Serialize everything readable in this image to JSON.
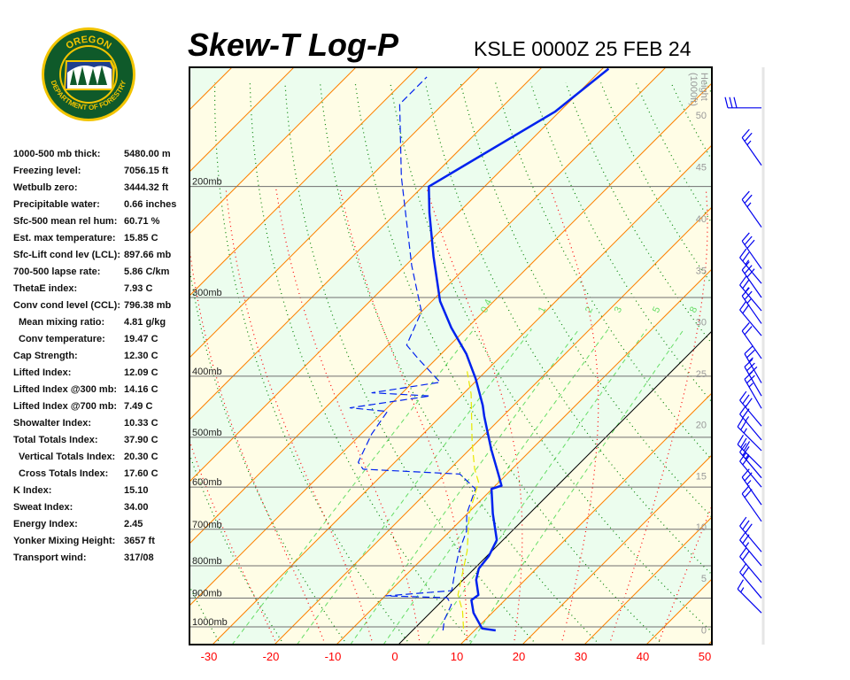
{
  "header": {
    "title": "Skew-T Log-P",
    "station": "KSLE 0000Z 25 FEB 24"
  },
  "logo": {
    "top_text": "OREGON",
    "bottom_text": "DEPARTMENT OF FORESTRY",
    "colors": {
      "ring": "#0f5a2a",
      "border": "#f2c400",
      "sky": "#1f3f8f"
    }
  },
  "stats": [
    {
      "label": "1000-500 mb thick:",
      "value": "5480.00 m"
    },
    {
      "label": "Freezing level:",
      "value": "7056.15 ft"
    },
    {
      "label": "Wetbulb zero:",
      "value": "3444.32 ft"
    },
    {
      "label": "Precipitable water:",
      "value": "0.66 inches"
    },
    {
      "label": "Sfc-500 mean rel hum:",
      "value": "60.71 %"
    },
    {
      "label": "Est. max temperature:",
      "value": "15.85 C"
    },
    {
      "label": "Sfc-Lift cond lev (LCL):",
      "value": "897.66 mb"
    },
    {
      "label": "700-500 lapse rate:",
      "value": "5.86 C/km"
    },
    {
      "label": "ThetaE index:",
      "value": "7.93 C"
    },
    {
      "label": "Conv cond level (CCL):",
      "value": "796.38 mb"
    },
    {
      "label": "Mean mixing ratio:",
      "value": "4.81 g/kg",
      "indent": true
    },
    {
      "label": "Conv temperature:",
      "value": "19.47 C",
      "indent": true
    },
    {
      "label": "Cap Strength:",
      "value": "12.30 C"
    },
    {
      "label": "Lifted Index:",
      "value": "12.09 C"
    },
    {
      "label": "Lifted Index @300 mb:",
      "value": "14.16 C"
    },
    {
      "label": "Lifted Index @700 mb:",
      "value": "7.49 C"
    },
    {
      "label": "Showalter Index:",
      "value": "10.33 C"
    },
    {
      "label": "Total Totals Index:",
      "value": "37.90 C"
    },
    {
      "label": "Vertical Totals Index:",
      "value": "20.30 C",
      "indent": true
    },
    {
      "label": "Cross Totals Index:",
      "value": "17.60 C",
      "indent": true
    },
    {
      "label": "K Index:",
      "value": "15.10"
    },
    {
      "label": "Sweat Index:",
      "value": "34.00"
    },
    {
      "label": "Energy Index:",
      "value": "2.45"
    },
    {
      "label": "Yonker Mixing Height:",
      "value": "3657 ft"
    },
    {
      "label": "Transport wind:",
      "value": "317/08"
    }
  ],
  "chart_data": {
    "type": "line",
    "xlim": [
      -30,
      50
    ],
    "ylim_mb": [
      1067,
      129
    ],
    "skew": true,
    "x_tick_labels": [
      "-30",
      "-20",
      "-10",
      "0",
      "10",
      "20",
      "30",
      "40",
      "50"
    ],
    "isobars": [
      {
        "p": 200,
        "label": "200mb"
      },
      {
        "p": 300,
        "label": "300mb"
      },
      {
        "p": 400,
        "label": "400mb"
      },
      {
        "p": 500,
        "label": "500mb"
      },
      {
        "p": 600,
        "label": "600mb"
      },
      {
        "p": 700,
        "label": "700mb"
      },
      {
        "p": 800,
        "label": "800mb"
      },
      {
        "p": 900,
        "label": "900mb"
      },
      {
        "p": 1000,
        "label": "1000mb"
      }
    ],
    "height_axis": {
      "title": "Height",
      "units": "(1000ft)",
      "ticks": [
        {
          "label": "0",
          "p": 1012
        },
        {
          "label": "5",
          "p": 837
        },
        {
          "label": "10",
          "p": 694
        },
        {
          "label": "15",
          "p": 576
        },
        {
          "label": "20",
          "p": 477
        },
        {
          "label": "25",
          "p": 396
        },
        {
          "label": "30",
          "p": 328
        },
        {
          "label": "35",
          "p": 272
        },
        {
          "label": "40",
          "p": 225
        },
        {
          "label": "45",
          "p": 186
        },
        {
          "label": "50",
          "p": 154
        }
      ]
    },
    "mixing_ratio_lines": [
      {
        "w": 0.4,
        "label": "0.4"
      },
      {
        "w": 1,
        "label": "1"
      },
      {
        "w": 2,
        "label": "2"
      },
      {
        "w": 3,
        "label": "3"
      },
      {
        "w": 5,
        "label": "5"
      },
      {
        "w": 8,
        "label": "8"
      }
    ],
    "colors": {
      "temperature": "#0022ee",
      "dewpoint": "#0022ee",
      "wetbulb": "#e8e800",
      "isotherm": "#ff8000",
      "zero_isotherm": "#000000",
      "dry_adiabat": "#008000",
      "moist_adiabat": "#ff0000",
      "mixing_ratio": "#66dd66",
      "band_a": "#fffde6",
      "band_b": "#ecfdee",
      "isobar": "#707070",
      "x_tick": "#ff0000",
      "height_tick": "#999999"
    },
    "series": [
      {
        "style": "solid-thick",
        "color": "#0022ee",
        "points": [
          [
            1013,
            13.4
          ],
          [
            1006,
            10.9
          ],
          [
            950,
            7.0
          ],
          [
            907,
            4.6
          ],
          [
            890,
            4.9
          ],
          [
            842,
            2.1
          ],
          [
            808,
            0.7
          ],
          [
            772,
            0.3
          ],
          [
            728,
            -1.0
          ],
          [
            661,
            -5.9
          ],
          [
            604,
            -10.1
          ],
          [
            597,
            -9.0
          ],
          [
            577,
            -10.9
          ],
          [
            522,
            -16.6
          ],
          [
            463,
            -23.0
          ],
          [
            445,
            -25.0
          ],
          [
            404,
            -30.4
          ],
          [
            369,
            -35.9
          ],
          [
            335,
            -42.6
          ],
          [
            304,
            -48.7
          ],
          [
            258,
            -57.0
          ],
          [
            220,
            -64.7
          ],
          [
            200,
            -69.0
          ],
          [
            152,
            -60.7
          ],
          [
            130,
            -59.0
          ]
        ]
      },
      {
        "style": "dashed",
        "color": "#0022ee",
        "points": [
          [
            1013,
            4.9
          ],
          [
            974,
            3.4
          ],
          [
            922,
            2.1
          ],
          [
            899,
            0.3
          ],
          [
            893,
            -9.9
          ],
          [
            876,
            -0.1
          ],
          [
            803,
            -3.3
          ],
          [
            758,
            -5.3
          ],
          [
            705,
            -7.3
          ],
          [
            661,
            -10.1
          ],
          [
            604,
            -12.7
          ],
          [
            572,
            -17.6
          ],
          [
            562,
            -34.0
          ],
          [
            548,
            -35.9
          ],
          [
            494,
            -38.3
          ],
          [
            455,
            -39.4
          ],
          [
            449,
            -46.0
          ],
          [
            430,
            -35.0
          ],
          [
            425,
            -44.9
          ],
          [
            409,
            -35.6
          ],
          [
            375,
            -43.0
          ],
          [
            357,
            -47.0
          ],
          [
            316,
            -50.0
          ],
          [
            267,
            -59.0
          ],
          [
            193,
            -75.0
          ],
          [
            148,
            -87.0
          ],
          [
            134,
            -87.0
          ]
        ]
      },
      {
        "style": "dashed",
        "color": "#e8e800",
        "points": [
          [
            1006,
            7.9
          ],
          [
            943,
            4.9
          ],
          [
            890,
            1.6
          ],
          [
            758,
            -4.0
          ],
          [
            661,
            -9.7
          ],
          [
            589,
            -13.3
          ],
          [
            562,
            -16.0
          ],
          [
            510,
            -20.7
          ],
          [
            427,
            -28.7
          ],
          [
            393,
            -33.0
          ]
        ]
      }
    ],
    "wind_barbs": [
      {
        "p": 150,
        "dir": 270,
        "kt": 30
      },
      {
        "p": 185,
        "dir": 325,
        "kt": 25
      },
      {
        "p": 232,
        "dir": 325,
        "kt": 25
      },
      {
        "p": 270,
        "dir": 325,
        "kt": 30
      },
      {
        "p": 285,
        "dir": 320,
        "kt": 25
      },
      {
        "p": 300,
        "dir": 325,
        "kt": 30
      },
      {
        "p": 315,
        "dir": 320,
        "kt": 25
      },
      {
        "p": 330,
        "dir": 325,
        "kt": 25
      },
      {
        "p": 345,
        "dir": 320,
        "kt": 20
      },
      {
        "p": 375,
        "dir": 325,
        "kt": 20
      },
      {
        "p": 410,
        "dir": 330,
        "kt": 25
      },
      {
        "p": 430,
        "dir": 330,
        "kt": 30
      },
      {
        "p": 450,
        "dir": 330,
        "kt": 25
      },
      {
        "p": 480,
        "dir": 320,
        "kt": 30
      },
      {
        "p": 505,
        "dir": 320,
        "kt": 25
      },
      {
        "p": 525,
        "dir": 315,
        "kt": 25
      },
      {
        "p": 560,
        "dir": 315,
        "kt": 30
      },
      {
        "p": 580,
        "dir": 320,
        "kt": 25
      },
      {
        "p": 600,
        "dir": 320,
        "kt": 20
      },
      {
        "p": 640,
        "dir": 325,
        "kt": 25
      },
      {
        "p": 680,
        "dir": 325,
        "kt": 20
      },
      {
        "p": 760,
        "dir": 320,
        "kt": 30
      },
      {
        "p": 800,
        "dir": 320,
        "kt": 25
      },
      {
        "p": 850,
        "dir": 320,
        "kt": 20
      },
      {
        "p": 900,
        "dir": 320,
        "kt": 20
      },
      {
        "p": 950,
        "dir": 315,
        "kt": 15
      }
    ]
  }
}
